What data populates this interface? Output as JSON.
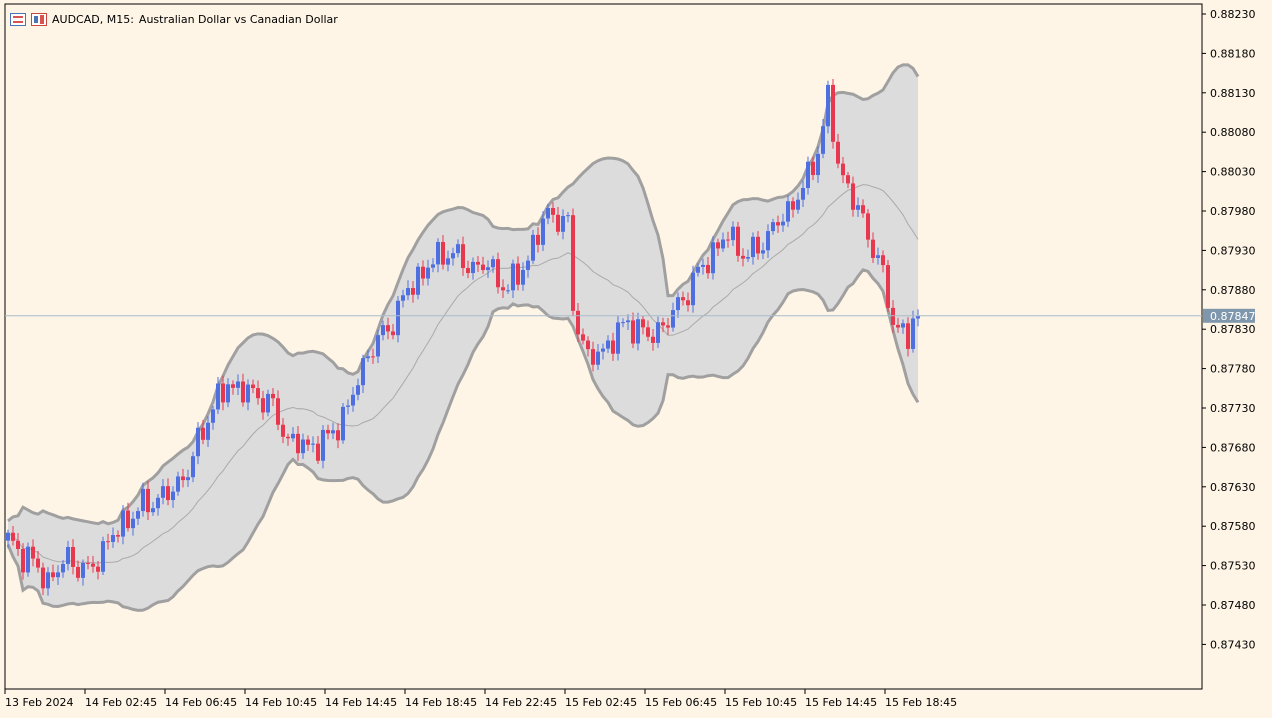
{
  "header": {
    "symbol_label": "AUDCAD, M15:",
    "description": "Australian Dollar vs Canadian Dollar",
    "icon_1": "chart-table-icon",
    "icon_2": "chart-candles-icon"
  },
  "colors": {
    "background": "#fef5e6",
    "bull": "#4f6fe0",
    "bear": "#e8384f",
    "band_fill": "#dcdcdc",
    "band_line": "#a0a0a0",
    "mid_line": "#aaaaaa",
    "price_line": "#a9bccc",
    "price_tag": "#7f97ad"
  },
  "chart_data": {
    "type": "candlestick",
    "symbol": "AUDCAD",
    "timeframe": "M15",
    "y_ticks": [
      "0.88230",
      "0.88180",
      "0.88130",
      "0.88080",
      "0.88030",
      "0.87980",
      "0.87930",
      "0.87880",
      "0.87830",
      "0.87780",
      "0.87730",
      "0.87680",
      "0.87630",
      "0.87580",
      "0.87530",
      "0.87480",
      "0.87430"
    ],
    "ylim": [
      0.8739,
      0.8824
    ],
    "x_labels": [
      "13 Feb 2024",
      "14 Feb 02:45",
      "14 Feb 06:45",
      "14 Feb 10:45",
      "14 Feb 14:45",
      "14 Feb 18:45",
      "14 Feb 22:45",
      "15 Feb 02:45",
      "15 Feb 06:45",
      "15 Feb 10:45",
      "15 Feb 14:45",
      "15 Feb 18:45"
    ],
    "current_price": "0.87847",
    "close_anchors": [
      [
        0,
        0.8756
      ],
      [
        4,
        0.8754
      ],
      [
        8,
        0.8751
      ],
      [
        12,
        0.8754
      ],
      [
        16,
        0.8752
      ],
      [
        20,
        0.8756
      ],
      [
        24,
        0.8759
      ],
      [
        28,
        0.8761
      ],
      [
        32,
        0.8762
      ],
      [
        36,
        0.8765
      ],
      [
        40,
        0.8772
      ],
      [
        44,
        0.8776
      ],
      [
        48,
        0.8775
      ],
      [
        52,
        0.8774
      ],
      [
        56,
        0.8769
      ],
      [
        60,
        0.8768
      ],
      [
        64,
        0.8769
      ],
      [
        68,
        0.8773
      ],
      [
        72,
        0.878
      ],
      [
        76,
        0.8783
      ],
      [
        80,
        0.8788
      ],
      [
        84,
        0.8791
      ],
      [
        88,
        0.8793
      ],
      [
        92,
        0.8791
      ],
      [
        96,
        0.8791
      ],
      [
        100,
        0.8788
      ],
      [
        104,
        0.8792
      ],
      [
        108,
        0.8798
      ],
      [
        112,
        0.8796
      ],
      [
        113,
        0.8786
      ],
      [
        116,
        0.8779
      ],
      [
        120,
        0.8781
      ],
      [
        124,
        0.8784
      ],
      [
        128,
        0.8782
      ],
      [
        132,
        0.8784
      ],
      [
        136,
        0.8788
      ],
      [
        140,
        0.8792
      ],
      [
        144,
        0.8795
      ],
      [
        148,
        0.8792
      ],
      [
        152,
        0.8795
      ],
      [
        156,
        0.8798
      ],
      [
        160,
        0.8802
      ],
      [
        162,
        0.8806
      ],
      [
        164,
        0.8812
      ],
      [
        166,
        0.8804
      ],
      [
        170,
        0.8798
      ],
      [
        174,
        0.8792
      ],
      [
        177,
        0.8784
      ],
      [
        180,
        0.8782
      ],
      [
        182,
        0.87847
      ]
    ]
  }
}
